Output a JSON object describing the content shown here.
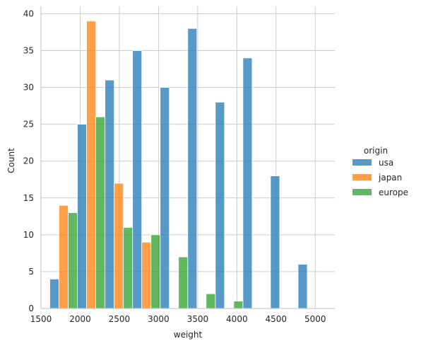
{
  "chart_data": {
    "type": "bar",
    "subtype": "histogram",
    "multiple": "dodge",
    "title": "",
    "xlabel": "weight",
    "ylabel": "Count",
    "xlim": [
      1500,
      5250
    ],
    "ylim": [
      0,
      41
    ],
    "x_ticks": [
      1500,
      2000,
      2500,
      3000,
      3500,
      4000,
      4500,
      5000
    ],
    "y_ticks": [
      0,
      5,
      10,
      15,
      20,
      25,
      30,
      35,
      40
    ],
    "grid": true,
    "legend": {
      "title": "origin",
      "placement": "right"
    },
    "bin_edges": [
      1613,
      1965,
      2317,
      2669,
      3021,
      3373,
      3725,
      4077,
      4429,
      4781,
      5133
    ],
    "series": [
      {
        "name": "usa",
        "color": "#1f77b4",
        "values": [
          4,
          25,
          31,
          35,
          30,
          38,
          28,
          34,
          18,
          6
        ]
      },
      {
        "name": "japan",
        "color": "#ff7f0e",
        "values": [
          14,
          39,
          17,
          9,
          0,
          0,
          0,
          0,
          0,
          0
        ]
      },
      {
        "name": "europe",
        "color": "#2ca02c",
        "values": [
          13,
          26,
          11,
          10,
          7,
          2,
          1,
          0,
          0,
          0
        ]
      }
    ]
  }
}
